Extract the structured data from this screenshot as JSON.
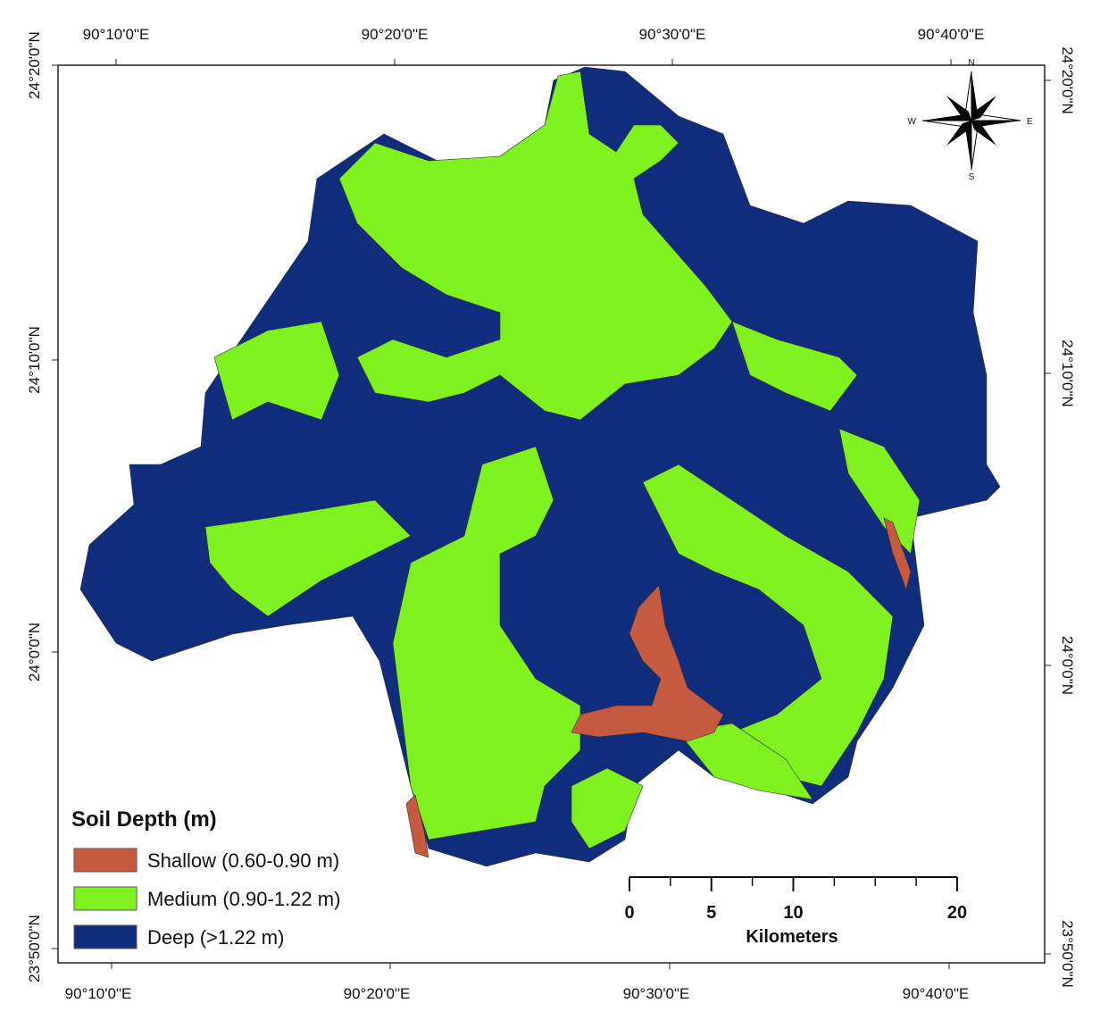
{
  "frame": {
    "top_labels": [
      "90°10'0\"E",
      "90°20'0\"E",
      "90°30'0\"E",
      "90°40'0\"E"
    ],
    "bottom_labels": [
      "90°10'0\"E",
      "90°20'0\"E",
      "90°30'0\"E",
      "90°40'0\"E"
    ],
    "left_labels": [
      "24°20'0\"N",
      "24°10'0\"N",
      "24°0'0\"N",
      "23°50'0\"N"
    ],
    "right_labels": [
      "24°20'0\"N",
      "24°10'0\"N",
      "24°0'0\"N",
      "23°50'0\"N"
    ]
  },
  "legend": {
    "title": "Soil Depth (m)",
    "items": [
      {
        "label": "Shallow (0.60-0.90 m)",
        "color": "#c65a3f"
      },
      {
        "label": "Medium (0.90-1.22 m)",
        "color": "#7ff11f"
      },
      {
        "label": "Deep (>1.22 m)",
        "color": "#0f2d7c"
      }
    ]
  },
  "scale_bar": {
    "ticks": [
      0,
      5,
      10,
      20
    ],
    "unit": "Kilometers"
  },
  "north_arrow": {
    "N": "N",
    "E": "E",
    "S": "S",
    "W": "W"
  }
}
